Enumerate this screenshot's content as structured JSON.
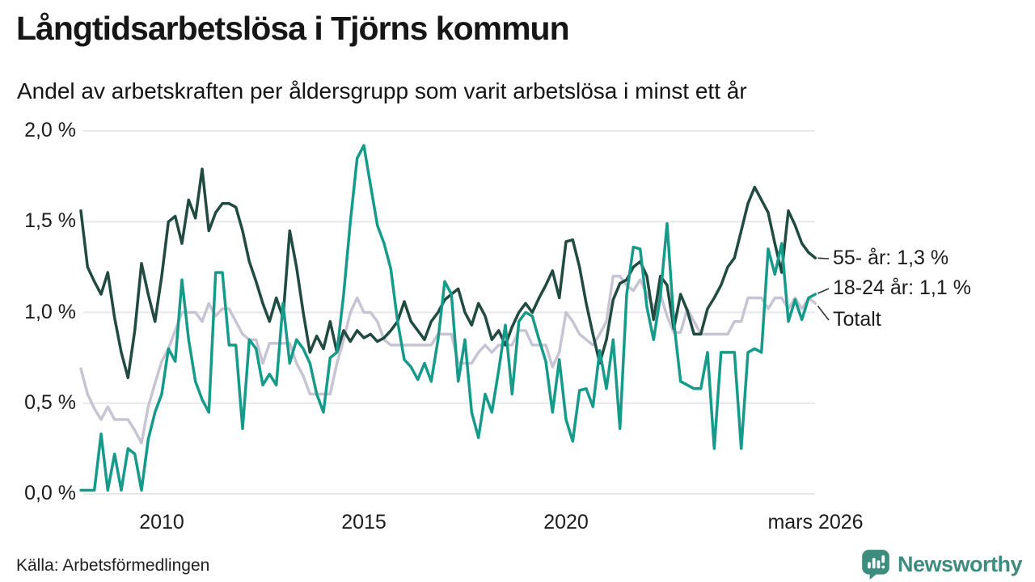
{
  "header": {
    "title": "Långtidsarbetslösa i Tjörns kommun",
    "subtitle": "Andel av arbetskraften per åldersgrupp som varit arbetslösa i minst ett år"
  },
  "footer": {
    "source": "Källa: Arbetsförmedlingen",
    "brand": "Newsworthy",
    "brand_color": "#3e8c7e",
    "brand_icon": "newsworthy-speech-bubble-bar-chart-icon"
  },
  "chart_data": {
    "type": "line",
    "title": "Långtidsarbetslösa i Tjörns kommun",
    "subtitle": "Andel av arbetskraften per åldersgrupp som varit arbetslösa i minst ett år",
    "x_unit": "decimal_year_monthly_series",
    "x_start": 2008.0,
    "x_step": 0.166667,
    "xlim": [
      2008.0,
      2026.17
    ],
    "ylim": [
      0.0,
      2.0
    ],
    "grid": "horizontal",
    "legend_position": "right-end-labels",
    "y_ticks": [
      {
        "v": 0.0,
        "label": "0,0 %"
      },
      {
        "v": 0.5,
        "label": "0,5 %"
      },
      {
        "v": 1.0,
        "label": "1,0 %"
      },
      {
        "v": 1.5,
        "label": "1,5 %"
      },
      {
        "v": 2.0,
        "label": "2,0 %"
      }
    ],
    "x_ticks": [
      {
        "x": 2010,
        "label": "2010"
      },
      {
        "x": 2015,
        "label": "2015"
      },
      {
        "x": 2020,
        "label": "2020"
      },
      {
        "x": 2026.17,
        "label": "mars 2026"
      }
    ],
    "colors": {
      "grid": "#e7e7ec",
      "senior": "#214a41",
      "youth": "#169b8a",
      "total": "#c7c5d3",
      "connector": "#333333"
    },
    "fade_out_x": [
      2023.667,
      2024.333
    ],
    "series": [
      {
        "id": "55-ar",
        "name": "55- år",
        "end_label": "55- år: 1,3 %",
        "end_value_label": "1,3 %",
        "color": "#214a41",
        "values": [
          1.56,
          1.25,
          1.17,
          1.1,
          1.22,
          0.97,
          0.78,
          0.64,
          0.9,
          1.27,
          1.1,
          0.95,
          1.2,
          1.5,
          1.53,
          1.38,
          1.62,
          1.52,
          1.79,
          1.45,
          1.55,
          1.6,
          1.6,
          1.58,
          1.45,
          1.28,
          1.17,
          1.05,
          0.95,
          1.08,
          0.97,
          1.45,
          1.25,
          1.0,
          0.78,
          0.87,
          0.8,
          0.95,
          0.78,
          0.9,
          0.84,
          0.9,
          0.86,
          0.88,
          0.84,
          0.86,
          0.9,
          0.95,
          1.06,
          0.95,
          0.9,
          0.85,
          0.95,
          1.0,
          1.07,
          1.1,
          1.13,
          1.0,
          0.93,
          1.05,
          0.98,
          0.85,
          0.9,
          0.82,
          0.92,
          1.0,
          1.05,
          1.0,
          1.08,
          1.15,
          1.23,
          1.08,
          1.39,
          1.4,
          1.25,
          1.05,
          0.88,
          0.72,
          0.85,
          1.07,
          1.16,
          1.18,
          1.25,
          1.28,
          1.2,
          0.96,
          1.2,
          1.15,
          0.91,
          1.1,
          1.01,
          0.88,
          0.88,
          1.02,
          1.08,
          1.15,
          1.25,
          1.3,
          1.45,
          1.6,
          1.69,
          1.62,
          1.55,
          1.38,
          1.22,
          1.56,
          1.48,
          1.38,
          1.33,
          1.3
        ]
      },
      {
        "id": "18-24-ar",
        "name": "18-24 år",
        "end_label": "18-24 år: 1,1 %",
        "end_value_label": "1,1 %",
        "color": "#169b8a",
        "values": [
          0.02,
          0.02,
          0.02,
          0.33,
          0.02,
          0.22,
          0.02,
          0.25,
          0.22,
          0.02,
          0.3,
          0.45,
          0.55,
          0.8,
          0.73,
          1.18,
          0.85,
          0.62,
          0.52,
          0.45,
          1.22,
          1.22,
          0.82,
          0.82,
          0.36,
          0.85,
          0.8,
          0.6,
          0.66,
          0.6,
          1.05,
          0.72,
          0.85,
          0.8,
          0.72,
          0.55,
          0.45,
          0.75,
          0.78,
          1.1,
          1.5,
          1.85,
          1.92,
          1.7,
          1.48,
          1.38,
          1.24,
          0.95,
          0.74,
          0.7,
          0.63,
          0.72,
          0.62,
          0.85,
          1.17,
          1.1,
          0.62,
          0.85,
          0.45,
          0.31,
          0.55,
          0.45,
          0.68,
          0.93,
          0.55,
          0.95,
          1.0,
          0.98,
          0.85,
          0.73,
          0.45,
          0.74,
          0.41,
          0.29,
          0.57,
          0.58,
          0.48,
          0.79,
          0.58,
          0.85,
          0.36,
          1.1,
          1.36,
          1.35,
          1.03,
          0.85,
          1.09,
          1.49,
          0.95,
          0.62,
          0.6,
          0.58,
          0.58,
          0.78,
          0.25,
          0.78,
          0.78,
          0.78,
          0.25,
          0.78,
          0.8,
          0.78,
          1.35,
          1.21,
          1.38,
          0.95,
          1.07,
          0.96,
          1.08,
          1.1
        ]
      },
      {
        "id": "totalt",
        "name": "Totalt",
        "end_label": "Totalt",
        "end_value_label": "",
        "color": "#c7c5d3",
        "values": [
          0.69,
          0.55,
          0.47,
          0.41,
          0.48,
          0.41,
          0.41,
          0.41,
          0.35,
          0.28,
          0.48,
          0.61,
          0.73,
          0.8,
          0.9,
          1.0,
          1.0,
          1.0,
          0.95,
          1.05,
          0.98,
          1.02,
          1.02,
          0.95,
          0.88,
          0.85,
          0.85,
          0.72,
          0.83,
          0.83,
          0.83,
          0.83,
          0.72,
          0.65,
          0.55,
          0.55,
          0.55,
          0.55,
          0.72,
          0.85,
          1.0,
          1.08,
          1.0,
          1.0,
          0.95,
          0.85,
          0.82,
          0.82,
          0.82,
          0.82,
          0.82,
          0.82,
          0.82,
          0.88,
          0.88,
          0.88,
          0.72,
          0.72,
          0.72,
          0.78,
          0.82,
          0.78,
          0.82,
          0.82,
          0.82,
          0.9,
          0.9,
          0.82,
          0.82,
          0.82,
          0.7,
          0.78,
          1.0,
          0.95,
          0.88,
          0.85,
          0.82,
          0.88,
          0.95,
          1.2,
          1.2,
          1.15,
          1.12,
          1.18,
          1.1,
          1.03,
          1.1,
          0.98,
          0.89,
          0.89,
          1.02,
          0.95,
          0.88,
          0.88,
          0.88,
          0.88,
          0.88,
          0.95,
          0.95,
          1.08,
          1.08,
          1.08,
          1.02,
          1.08,
          1.08,
          1.02,
          1.08,
          1.02,
          1.08,
          1.05
        ]
      }
    ]
  }
}
